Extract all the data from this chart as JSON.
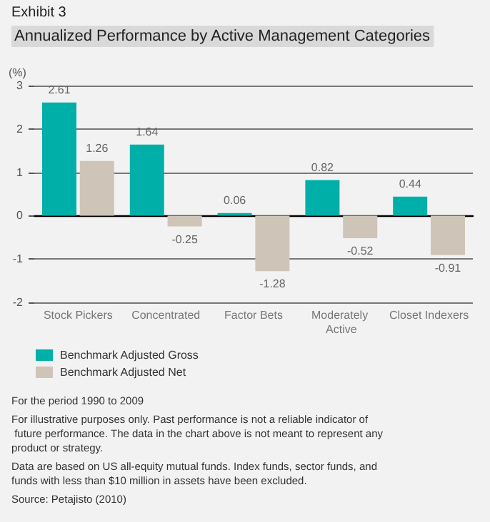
{
  "chart_data": {
    "type": "bar",
    "subtitle": "Exhibit 3",
    "title": "Annualized Performance by Active Management Categories",
    "ylabel": "(%)",
    "categories": [
      "Stock Pickers",
      "Concentrated",
      "Factor Bets",
      "Moderately Active",
      "Closet Indexers"
    ],
    "series": [
      {
        "name": "Benchmark Adjusted Gross",
        "color": "#00b0a8",
        "values": [
          2.61,
          1.64,
          0.06,
          0.82,
          0.44
        ]
      },
      {
        "name": "Benchmark Adjusted Net",
        "color": "#cfc4b8",
        "values": [
          1.26,
          -0.25,
          -1.28,
          -0.52,
          -0.91
        ]
      }
    ],
    "ylim": [
      -2,
      3
    ],
    "yticks": [
      -2,
      -1,
      0,
      1,
      2,
      3
    ],
    "grid": "y",
    "legend": "bottom left",
    "data_labels": true,
    "annotations": [
      "For the period 1990 to 2009",
      "For illustrative purposes only. Past performance is not a reliable indicator of future performance. The data in the chart above is not meant to represent any product or strategy.",
      "Data are based on US all-equity mutual funds. Index funds, sector funds, and funds with less than $10 million in assets have been excluded.",
      "Source: Petajisto (2010)"
    ]
  }
}
